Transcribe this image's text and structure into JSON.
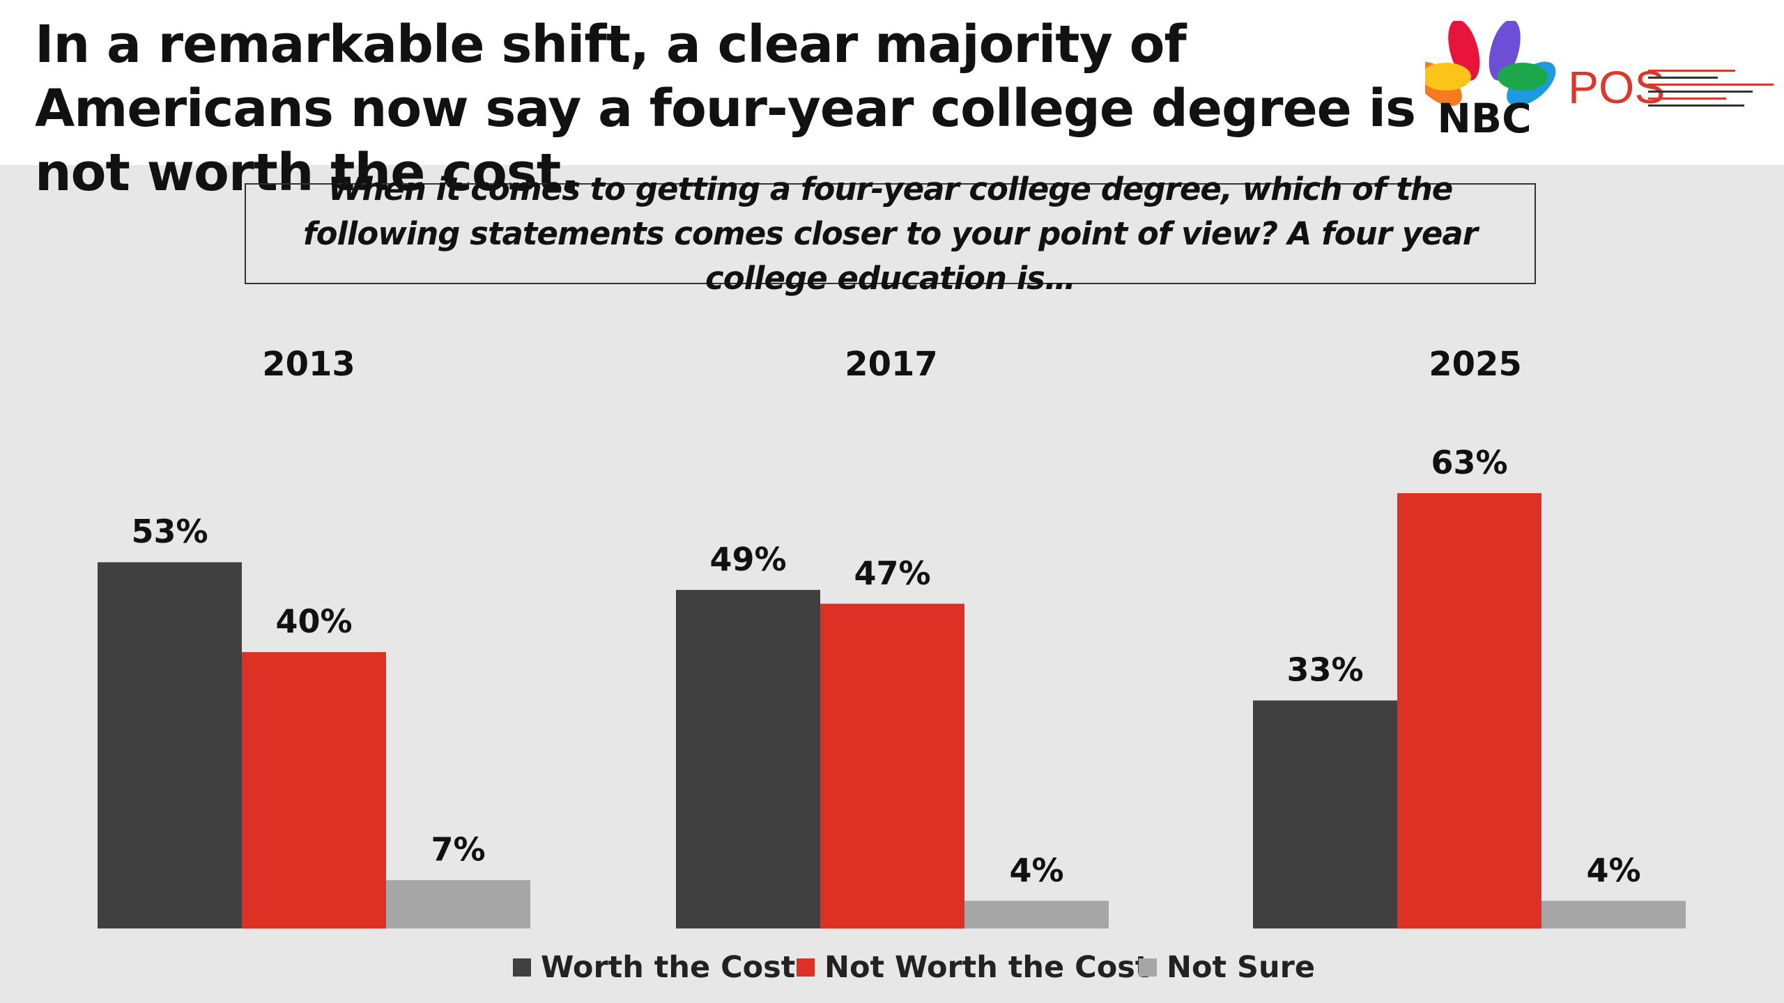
{
  "header": {
    "title": "In a remarkable shift, a clear majority of Americans now say a four-year college degree is not worth the cost.",
    "logos": {
      "nbc": "NBC",
      "pos": "POS"
    }
  },
  "chart_data": {
    "type": "bar",
    "title": "When it comes to getting a four-year college degree, which of the following statements comes closer to your point of view? A four year college education is…",
    "categories": [
      "2013",
      "2017",
      "2025"
    ],
    "series": [
      {
        "name": "Worth the Cost",
        "values": [
          53,
          49,
          33
        ],
        "color": "#404040"
      },
      {
        "name": "Not Worth the Cost",
        "values": [
          40,
          47,
          63
        ],
        "color": "#dc3124"
      },
      {
        "name": "Not Sure",
        "values": [
          7,
          4,
          4
        ],
        "color": "#a6a6a6"
      }
    ],
    "value_suffix": "%",
    "ylim": [
      0,
      70
    ],
    "grid": false,
    "legend_position": "bottom"
  }
}
